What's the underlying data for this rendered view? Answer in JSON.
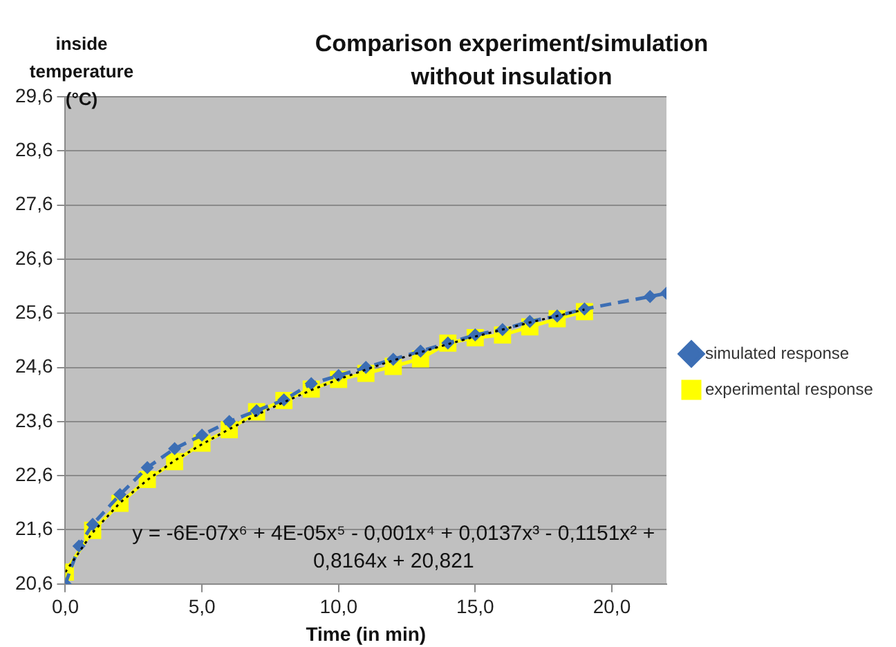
{
  "chart_data": {
    "type": "line",
    "title": "Comparison experiment/simulation without insulation",
    "xlabel": "Time (in min)",
    "ylabel": "inside temperature (°C)",
    "xlim": [
      0,
      22
    ],
    "xticks": [
      {
        "value": 0,
        "label": "0,0"
      },
      {
        "value": 5,
        "label": "5,0"
      },
      {
        "value": 10,
        "label": "10,0"
      },
      {
        "value": 15,
        "label": "15,0"
      },
      {
        "value": 20,
        "label": "20,0"
      }
    ],
    "ylim": [
      20.6,
      29.6
    ],
    "yticks": [
      {
        "value": 20.6,
        "label": "20,6"
      },
      {
        "value": 21.6,
        "label": "21,6"
      },
      {
        "value": 22.6,
        "label": "22,6"
      },
      {
        "value": 23.6,
        "label": "23,6"
      },
      {
        "value": 24.6,
        "label": "24,6"
      },
      {
        "value": 25.6,
        "label": "25,6"
      },
      {
        "value": 26.6,
        "label": "26,6"
      },
      {
        "value": 27.6,
        "label": "27,6"
      },
      {
        "value": 28.6,
        "label": "28,6"
      },
      {
        "value": 29.6,
        "label": "29,6"
      }
    ],
    "grid": "y",
    "legend": "right",
    "series": [
      {
        "name": "simulated response",
        "color": "#3c6eb4",
        "marker": "diamond",
        "line_style": "dashed",
        "x": [
          0,
          0.5,
          1,
          2,
          3,
          4,
          5,
          6,
          7,
          8,
          9,
          10,
          11,
          12,
          13,
          14,
          15,
          16,
          17,
          18,
          19,
          21.4,
          22
        ],
        "values": [
          20.6,
          21.3,
          21.7,
          22.25,
          22.75,
          23.1,
          23.35,
          23.6,
          23.8,
          24.0,
          24.3,
          24.45,
          24.6,
          24.75,
          24.9,
          25.05,
          25.2,
          25.3,
          25.45,
          25.55,
          25.68,
          25.91,
          25.97
        ]
      },
      {
        "name": "experimental response",
        "color": "#ffff00",
        "marker": "square",
        "line_style": "solid",
        "x": [
          0,
          1,
          2,
          3,
          4,
          5,
          6,
          7,
          8,
          9,
          10,
          11,
          12,
          13,
          14,
          15,
          16,
          17,
          18,
          19
        ],
        "values": [
          20.82,
          21.59,
          22.09,
          22.53,
          22.86,
          23.2,
          23.45,
          23.78,
          23.99,
          24.2,
          24.38,
          24.49,
          24.62,
          24.76,
          25.05,
          25.15,
          25.2,
          25.35,
          25.5,
          25.63
        ]
      },
      {
        "type": "line",
        "color": "#000000",
        "marker": "none",
        "line_style": "dotted",
        "x": [
          0,
          1,
          2,
          3,
          4,
          5,
          6,
          7,
          8,
          9,
          10,
          11,
          12,
          13,
          14,
          15,
          16,
          17,
          18,
          19
        ],
        "values": [
          20.82,
          21.55,
          22.1,
          22.52,
          22.88,
          23.18,
          23.46,
          23.72,
          23.96,
          24.18,
          24.38,
          24.56,
          24.73,
          24.88,
          25.03,
          25.17,
          25.3,
          25.43,
          25.55,
          25.67
        ]
      }
    ],
    "annotations": [
      "y = -6E-07x⁶ + 4E-05x⁵ - 0,001x⁴ + 0,0137x³ - 0,1151x² + 0,8164x + 20,821"
    ]
  }
}
